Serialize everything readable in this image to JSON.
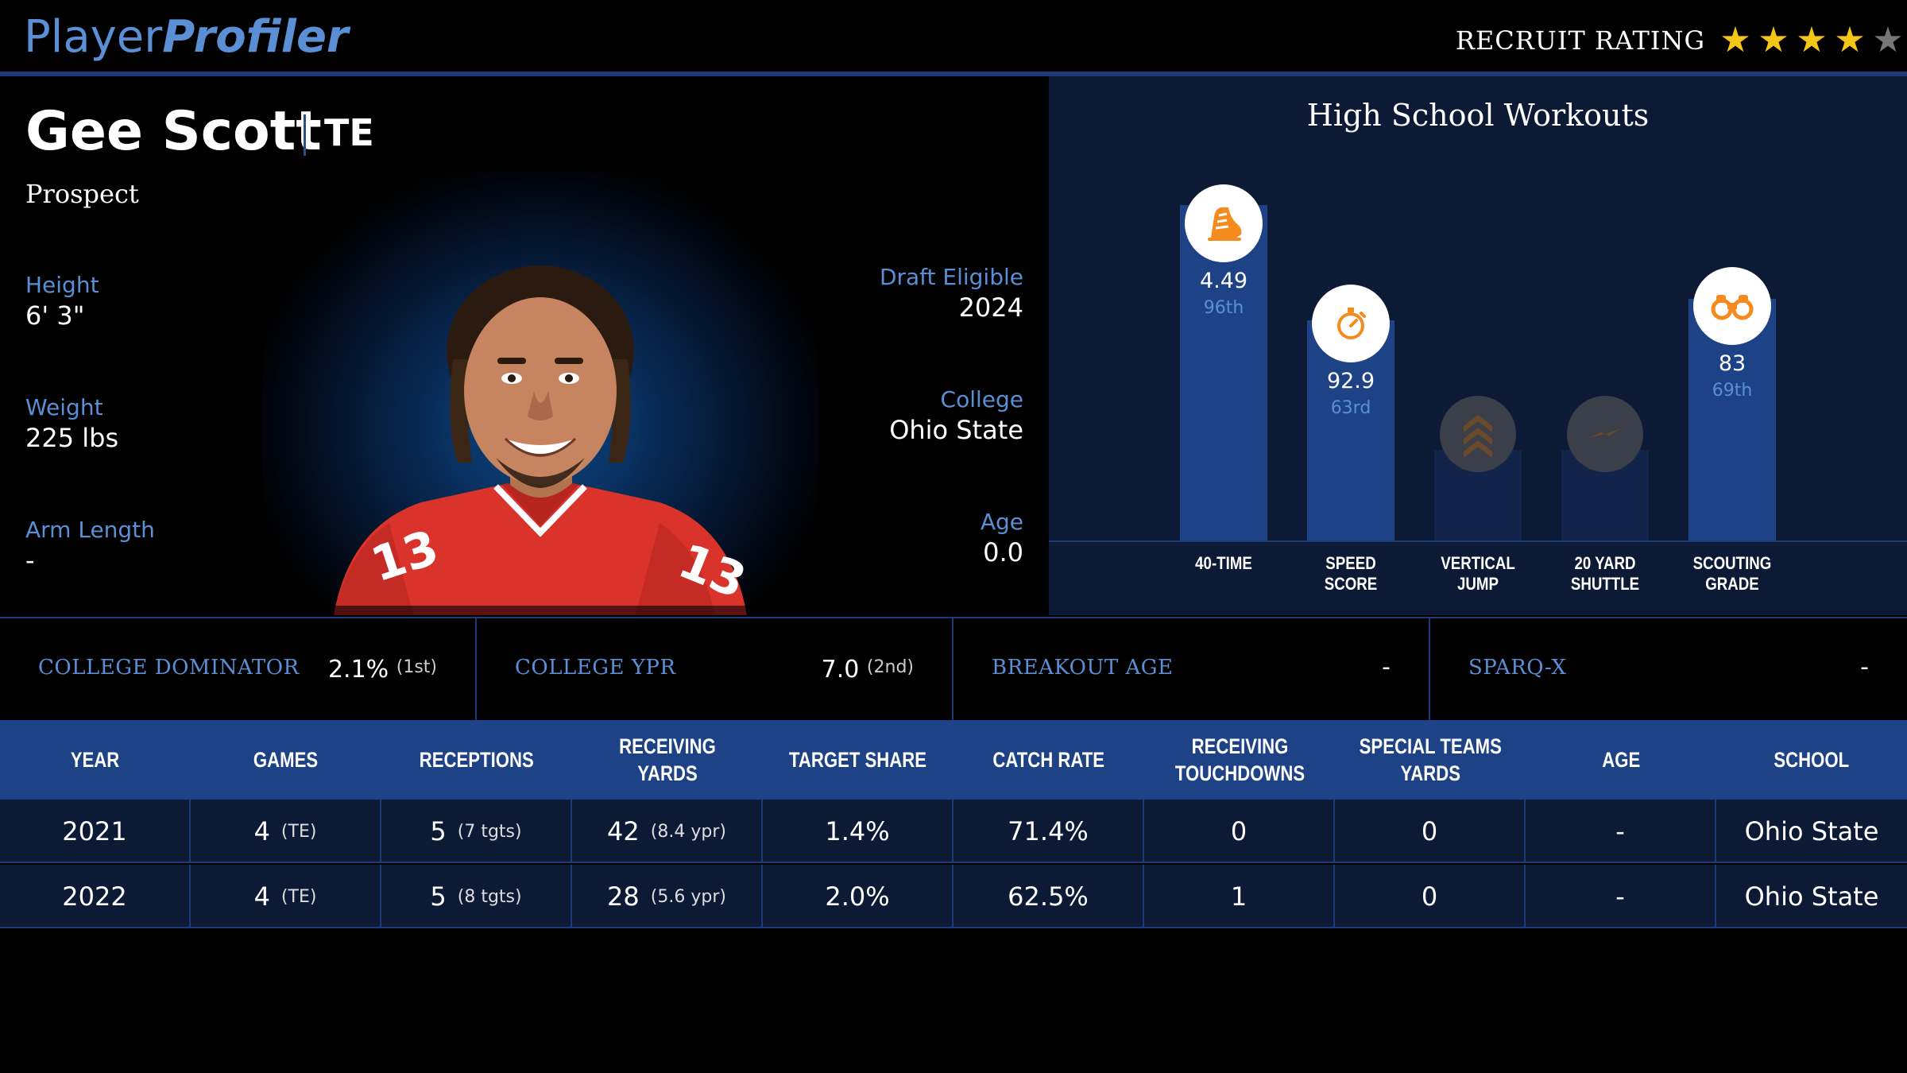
{
  "header": {
    "logo_part1": "Player",
    "logo_part2": "Profiler",
    "recruit_label": "RECRUIT RATING",
    "recruit_stars_filled": 4,
    "recruit_stars_total": 5
  },
  "player": {
    "name": "Gee Scott",
    "position": "TE",
    "status": "Prospect",
    "height_label": "Height",
    "height": "6' 3\"",
    "weight_label": "Weight",
    "weight": "225 lbs",
    "arm_label": "Arm Length",
    "arm": "-",
    "draft_label": "Draft Eligible",
    "draft": "2024",
    "college_label": "College",
    "college": "Ohio State",
    "age_label": "Age",
    "age": "0.0",
    "jersey_number": "13"
  },
  "workouts": {
    "title": "High School Workouts",
    "bars": [
      {
        "label1": "40-TIME",
        "label2": "",
        "value": "4.49",
        "percentile": "96th",
        "pct": 96,
        "icon": "shoe-icon",
        "active": true
      },
      {
        "label1": "SPEED",
        "label2": "SCORE",
        "value": "92.9",
        "percentile": "63rd",
        "pct": 63,
        "icon": "stopwatch-icon",
        "active": true
      },
      {
        "label1": "VERTICAL",
        "label2": "JUMP",
        "value": "",
        "percentile": "",
        "pct": 26,
        "icon": "chevrons-up-icon",
        "active": false
      },
      {
        "label1": "20 YARD",
        "label2": "SHUTTLE",
        "value": "",
        "percentile": "",
        "pct": 26,
        "icon": "lightning-icon",
        "active": false
      },
      {
        "label1": "SCOUTING",
        "label2": "GRADE",
        "value": "83",
        "percentile": "69th",
        "pct": 69,
        "icon": "binoculars-icon",
        "active": true
      }
    ]
  },
  "metrics": [
    {
      "label": "COLLEGE DOMINATOR",
      "value": "2.1%",
      "rank": "(1st)"
    },
    {
      "label": "COLLEGE YPR",
      "value": "7.0",
      "rank": "(2nd)"
    },
    {
      "label": "BREAKOUT AGE",
      "value": "-",
      "rank": ""
    },
    {
      "label": "SPARQ-X",
      "value": "-",
      "rank": ""
    }
  ],
  "table": {
    "headers": [
      "YEAR",
      "GAMES",
      "RECEPTIONS",
      "RECEIVING YARDS",
      "TARGET SHARE",
      "CATCH RATE",
      "RECEIVING\nTOUCHDOWNS",
      "SPECIAL TEAMS\nYARDS",
      "AGE",
      "SCHOOL"
    ],
    "rows": [
      {
        "year": "2021",
        "games": "4",
        "games_note": "(TE)",
        "rec": "5",
        "rec_note": "(7 tgts)",
        "yds": "42",
        "yds_note": "(8.4 ypr)",
        "target_share": "1.4%",
        "catch_rate": "71.4%",
        "td": "0",
        "st_yds": "0",
        "age": "-",
        "school": "Ohio State"
      },
      {
        "year": "2022",
        "games": "4",
        "games_note": "(TE)",
        "rec": "5",
        "rec_note": "(8 tgts)",
        "yds": "28",
        "yds_note": "(5.6 ypr)",
        "target_share": "2.0%",
        "catch_rate": "62.5%",
        "td": "1",
        "st_yds": "0",
        "age": "-",
        "school": "Ohio State"
      }
    ]
  },
  "colors": {
    "accent": "#5a8fd6",
    "bar": "#1d4285",
    "panel": "#0c1a36",
    "star": "#f5c518",
    "icon_orange": "#f58a1f"
  }
}
